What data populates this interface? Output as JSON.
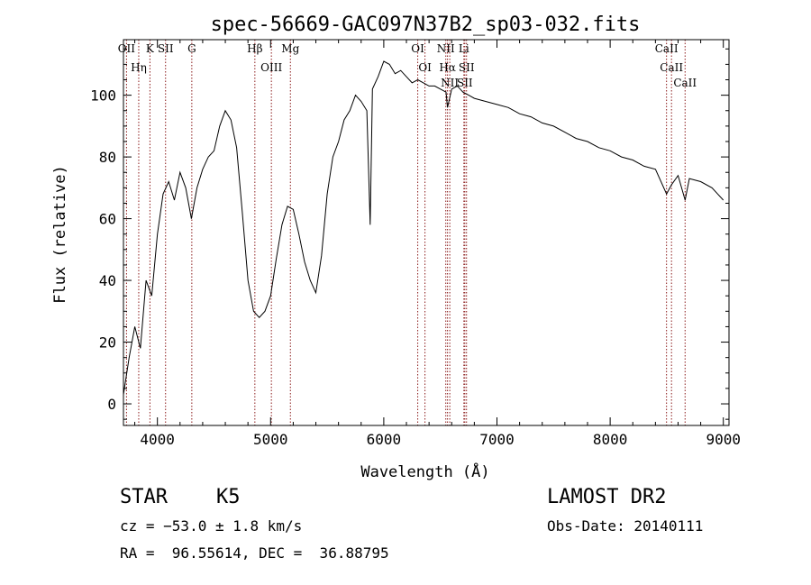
{
  "chart_data": {
    "type": "line",
    "title": "spec-56669-GAC097N37B2_sp03-032.fits",
    "xlabel": "Wavelength (Å)",
    "ylabel": "Flux (relative)",
    "xlim": [
      3700,
      9050
    ],
    "ylim": [
      -7,
      118
    ],
    "xticks": [
      4000,
      5000,
      6000,
      7000,
      8000,
      9000
    ],
    "yticks": [
      0,
      20,
      40,
      60,
      80,
      100
    ],
    "grid": false,
    "line_color": "#000000",
    "marker_color": "#8b1a1a",
    "spectral_lines": [
      {
        "name": "OII",
        "x": 3727
      },
      {
        "name": "Hη",
        "x": 3835
      },
      {
        "name": "K",
        "x": 3934
      },
      {
        "name": "SII",
        "x": 4072
      },
      {
        "name": "G",
        "x": 4304
      },
      {
        "name": "Hβ",
        "x": 4861
      },
      {
        "name": "OIII",
        "x": 5007
      },
      {
        "name": "Mg",
        "x": 5175
      },
      {
        "name": "OI",
        "x": 6300
      },
      {
        "name": "OI",
        "x": 6364
      },
      {
        "name": "NII",
        "x": 6548
      },
      {
        "name": "Hα",
        "x": 6563
      },
      {
        "name": "NII",
        "x": 6583
      },
      {
        "name": "Li",
        "x": 6708
      },
      {
        "name": "SII",
        "x": 6716
      },
      {
        "name": "SII",
        "x": 6731
      },
      {
        "name": "CaII",
        "x": 8498
      },
      {
        "name": "CaII",
        "x": 8542
      },
      {
        "name": "CaII",
        "x": 8662
      }
    ],
    "series": [
      {
        "x": [
          3700,
          3750,
          3800,
          3850,
          3900,
          3950,
          4000,
          4050,
          4100,
          4150,
          4200,
          4250,
          4300,
          4350,
          4400,
          4450,
          4500,
          4550,
          4600,
          4650,
          4700,
          4750,
          4800,
          4850,
          4900,
          4950,
          5000,
          5050,
          5100,
          5150,
          5200,
          5250,
          5300,
          5350,
          5400,
          5450,
          5500,
          5550,
          5600,
          5650,
          5700,
          5750,
          5800,
          5850,
          5880,
          5900,
          5950,
          6000,
          6050,
          6100,
          6150,
          6200,
          6250,
          6300,
          6350,
          6400,
          6450,
          6500,
          6550,
          6563,
          6600,
          6650,
          6700,
          6750,
          6800,
          6900,
          7000,
          7100,
          7200,
          7300,
          7400,
          7500,
          7600,
          7700,
          7800,
          7900,
          8000,
          8100,
          8200,
          8300,
          8400,
          8498,
          8542,
          8600,
          8662,
          8700,
          8800,
          8900,
          8950,
          9000
        ],
        "y": [
          3,
          15,
          25,
          18,
          40,
          35,
          55,
          68,
          72,
          66,
          75,
          70,
          60,
          70,
          76,
          80,
          82,
          90,
          95,
          92,
          83,
          62,
          40,
          30,
          28,
          30,
          35,
          47,
          58,
          64,
          63,
          55,
          46,
          40,
          36,
          48,
          68,
          80,
          85,
          92,
          95,
          100,
          98,
          95,
          58,
          102,
          106,
          111,
          110,
          107,
          108,
          106,
          104,
          105,
          104,
          103,
          103,
          102,
          101,
          96,
          102,
          103,
          101,
          100,
          99,
          98,
          97,
          96,
          94,
          93,
          91,
          90,
          88,
          86,
          85,
          83,
          82,
          80,
          79,
          77,
          76,
          68,
          71,
          74,
          66,
          73,
          72,
          70,
          68,
          66
        ]
      }
    ]
  },
  "footer": {
    "object_class": "STAR",
    "subclass": "K5",
    "survey": "LAMOST DR2",
    "cz": "cz = −53.0 ± 1.8 km/s",
    "obs_date": "Obs-Date: 20140111",
    "coords": "RA =  96.55614, DEC =  36.88795"
  }
}
